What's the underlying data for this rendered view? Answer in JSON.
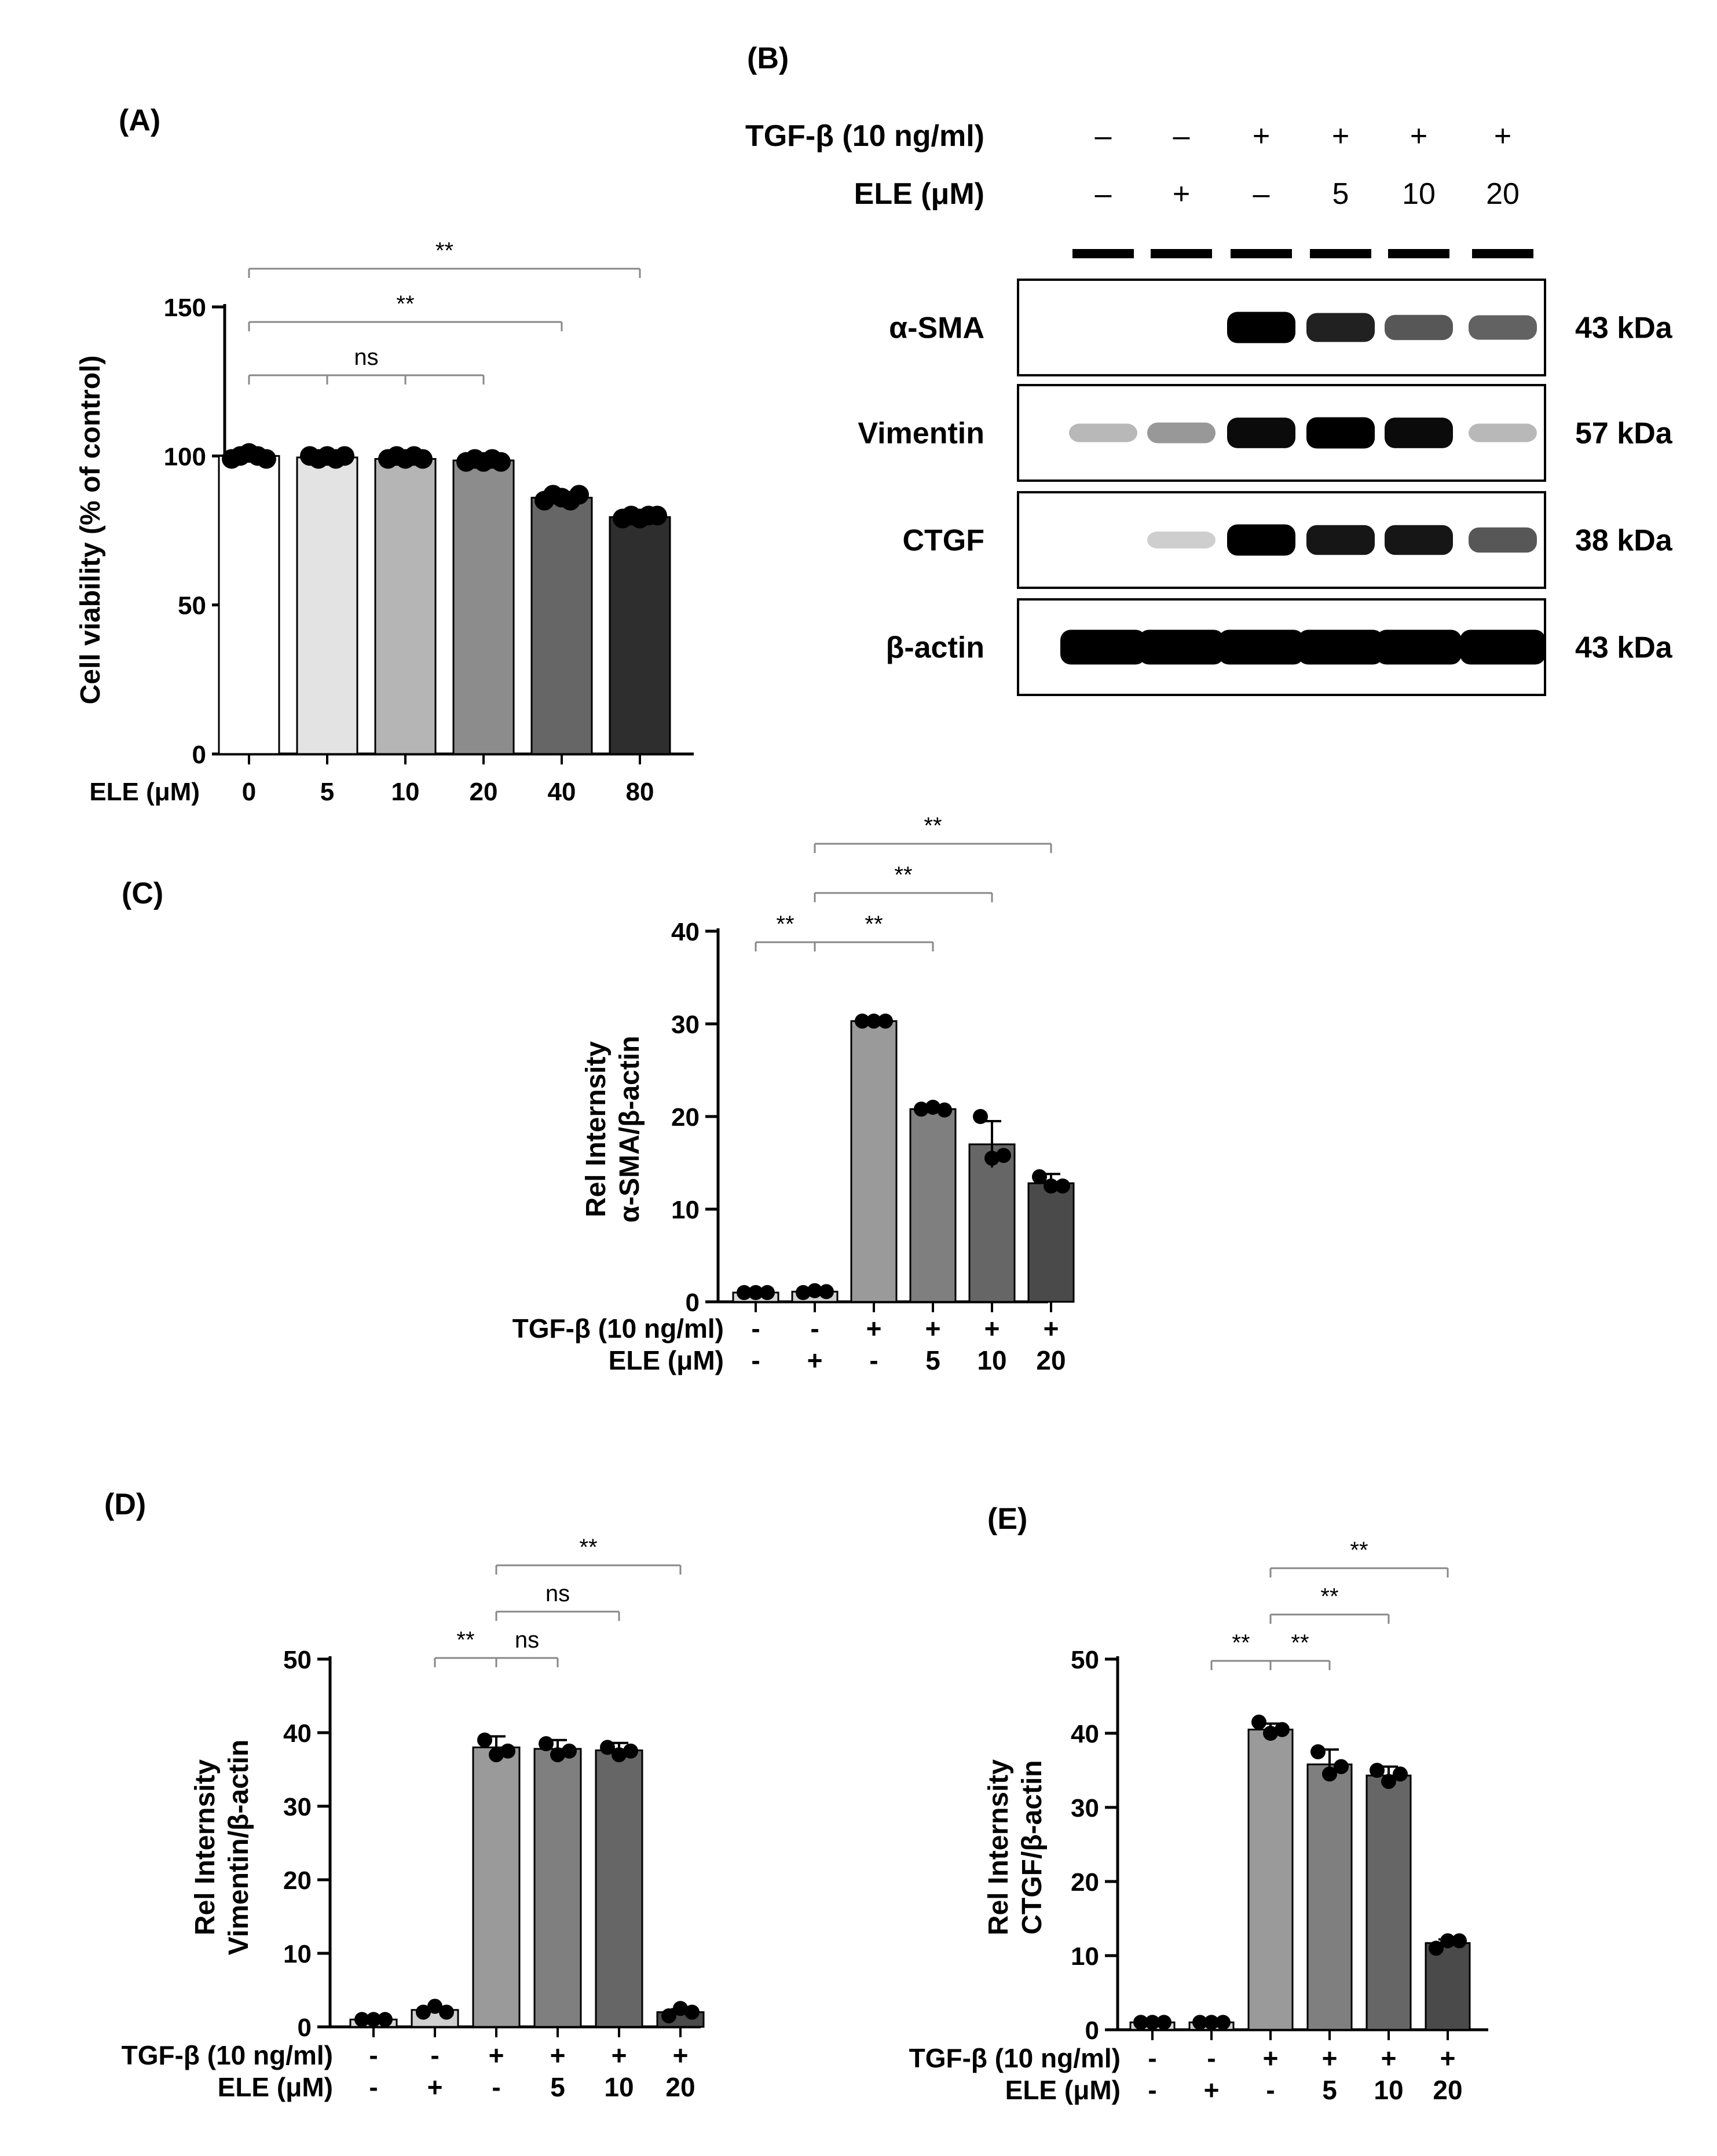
{
  "panels": {
    "A": {
      "label": "(A)"
    },
    "B": {
      "label": "(B)",
      "tgf_label": "TGF-β (10 ng/ml)",
      "ele_label": "ELE (μM)",
      "tgf_values": [
        "–",
        "–",
        "+",
        "+",
        "+",
        "+"
      ],
      "ele_values": [
        "–",
        "+",
        "–",
        "5",
        "10",
        "20"
      ],
      "blots": [
        {
          "protein": "α-SMA",
          "mw": "43 kDa",
          "intensity": [
            0,
            0,
            1.0,
            0.85,
            0.6,
            0.55
          ]
        },
        {
          "protein": "Vimentin",
          "mw": "57 kDa",
          "intensity": [
            0.15,
            0.3,
            0.95,
            1.0,
            0.95,
            0.15
          ]
        },
        {
          "protein": "CTGF",
          "mw": "38 kDa",
          "intensity": [
            0,
            0.05,
            1.0,
            0.9,
            0.9,
            0.6
          ]
        },
        {
          "protein": "β-actin",
          "mw": "43 kDa",
          "intensity": [
            1.0,
            1.0,
            1.0,
            1.0,
            1.0,
            1.0
          ]
        }
      ]
    },
    "C": {
      "label": "(C)"
    },
    "D": {
      "label": "(D)"
    },
    "E": {
      "label": "(E)"
    }
  },
  "chart_data": [
    {
      "panel": "A",
      "type": "bar",
      "ylabel": "Cell viability (% of control)",
      "xlabel": "ELE (μM)",
      "categories": [
        "0",
        "5",
        "10",
        "20",
        "40",
        "80"
      ],
      "values": [
        100,
        99.5,
        99,
        98.5,
        86,
        79.5
      ],
      "points": [
        [
          99,
          100,
          101,
          100,
          99
        ],
        [
          100,
          99,
          100,
          99,
          100
        ],
        [
          99,
          100,
          99,
          100,
          99
        ],
        [
          98,
          99,
          98,
          99,
          98
        ],
        [
          85,
          87,
          86,
          85,
          87
        ],
        [
          79,
          80,
          79,
          80,
          80
        ]
      ],
      "colors": [
        "#ffffff",
        "#e3e3e3",
        "#b5b5b5",
        "#8c8c8c",
        "#666666",
        "#2e2e2e"
      ],
      "ylim": [
        0,
        150
      ],
      "yticks": [
        "0",
        "50",
        "100",
        "150"
      ],
      "brackets": [
        {
          "from": 0,
          "to": 3,
          "text": "ns",
          "multi": true
        },
        {
          "from": 0,
          "to": 4,
          "text": "**"
        },
        {
          "from": 0,
          "to": 5,
          "text": "**"
        }
      ]
    },
    {
      "panel": "C",
      "type": "bar",
      "ylabel_lines": [
        "Rel Internsity",
        "α-SMA/β-actin"
      ],
      "control_labels": [
        "TGF-β (10 ng/ml)",
        "ELE (μM)"
      ],
      "tgf": [
        "-",
        "-",
        "+",
        "+",
        "+",
        "+"
      ],
      "ele": [
        "-",
        "+",
        "-",
        "5",
        "10",
        "20"
      ],
      "values": [
        1,
        1.1,
        30.3,
        20.8,
        17,
        12.8
      ],
      "errors": [
        0,
        0,
        0.2,
        0.3,
        2.5,
        1
      ],
      "points": [
        [
          1,
          1,
          1
        ],
        [
          1,
          1.2,
          1.1
        ],
        [
          30.3,
          30.3,
          30.3
        ],
        [
          20.8,
          21,
          20.7
        ],
        [
          20,
          15.5,
          15.8
        ],
        [
          13.5,
          12.5,
          12.5
        ]
      ],
      "colors": [
        "#d8d8d8",
        "#d0d0d0",
        "#9a9a9a",
        "#7f7f7f",
        "#666666",
        "#4a4a4a"
      ],
      "ylim": [
        0,
        40
      ],
      "yticks": [
        "0",
        "10",
        "20",
        "30",
        "40"
      ],
      "brackets": [
        {
          "from": 0,
          "to": 1,
          "text": "**"
        },
        {
          "from": 1,
          "to": 3,
          "text": "**"
        },
        {
          "from": 1,
          "to": 4,
          "text": "**"
        },
        {
          "from": 1,
          "to": 5,
          "text": "**"
        }
      ]
    },
    {
      "panel": "D",
      "type": "bar",
      "ylabel_lines": [
        "Rel Internsity",
        "Vimentin/β-actin"
      ],
      "control_labels": [
        "TGF-β (10 ng/ml)",
        "ELE (μM)"
      ],
      "tgf": [
        "-",
        "-",
        "+",
        "+",
        "+",
        "+"
      ],
      "ele": [
        "-",
        "+",
        "-",
        "5",
        "10",
        "20"
      ],
      "values": [
        1,
        2.3,
        38,
        37.8,
        37.6,
        2
      ],
      "errors": [
        0,
        0.3,
        1.5,
        1.2,
        1,
        0.4
      ],
      "points": [
        [
          1,
          1,
          1
        ],
        [
          2,
          2.8,
          2
        ],
        [
          39,
          37,
          37.5
        ],
        [
          38.5,
          37,
          37.5
        ],
        [
          38,
          37,
          37.5
        ],
        [
          1.5,
          2.5,
          2
        ]
      ],
      "colors": [
        "#d8d8d8",
        "#d0d0d0",
        "#9a9a9a",
        "#7f7f7f",
        "#666666",
        "#4a4a4a"
      ],
      "ylim": [
        0,
        50
      ],
      "yticks": [
        "0",
        "10",
        "20",
        "30",
        "40",
        "50"
      ],
      "brackets": [
        {
          "from": 1,
          "to": 2,
          "text": "**"
        },
        {
          "from": 2,
          "to": 3,
          "text": "ns"
        },
        {
          "from": 2,
          "to": 4,
          "text": "ns"
        },
        {
          "from": 2,
          "to": 5,
          "text": "**"
        }
      ]
    },
    {
      "panel": "E",
      "type": "bar",
      "ylabel_lines": [
        "Rel Internsity",
        "CTGF/β-actin"
      ],
      "control_labels": [
        "TGF-β (10 ng/ml)",
        "ELE (μM)"
      ],
      "tgf": [
        "-",
        "-",
        "+",
        "+",
        "+",
        "+"
      ],
      "ele": [
        "-",
        "+",
        "-",
        "5",
        "10",
        "20"
      ],
      "values": [
        1,
        1,
        40.5,
        35.8,
        34.3,
        11.7
      ],
      "errors": [
        0,
        0,
        0.8,
        2,
        1.2,
        0.5
      ],
      "points": [
        [
          1,
          1,
          1
        ],
        [
          1,
          1,
          1
        ],
        [
          41.5,
          40,
          40.5
        ],
        [
          37.5,
          34.5,
          35.5
        ],
        [
          35,
          33.5,
          34.5
        ],
        [
          11,
          12,
          12
        ]
      ],
      "colors": [
        "#d8d8d8",
        "#d0d0d0",
        "#9a9a9a",
        "#7f7f7f",
        "#666666",
        "#4a4a4a"
      ],
      "ylim": [
        0,
        50
      ],
      "yticks": [
        "0",
        "10",
        "20",
        "30",
        "40",
        "50"
      ],
      "brackets": [
        {
          "from": 1,
          "to": 2,
          "text": "**"
        },
        {
          "from": 2,
          "to": 3,
          "text": "**"
        },
        {
          "from": 2,
          "to": 4,
          "text": "**"
        },
        {
          "from": 2,
          "to": 5,
          "text": "**"
        }
      ]
    }
  ]
}
